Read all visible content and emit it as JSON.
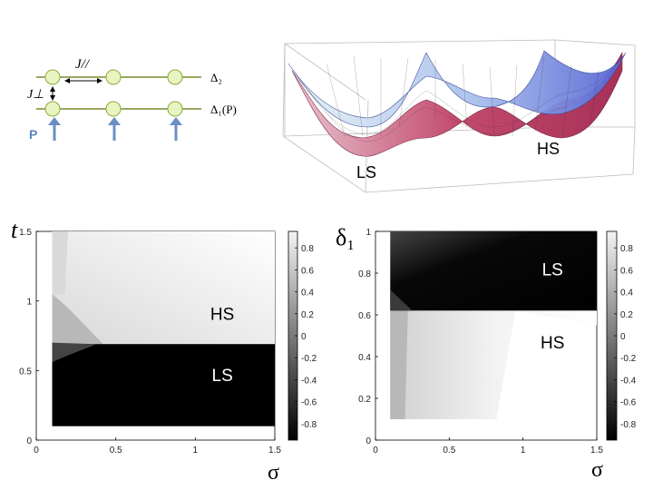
{
  "schematic": {
    "upper_level_label": "Δ₂",
    "lower_level_label": "Δ₁(P)",
    "inplane_coupling_label": "J//",
    "perp_coupling_label": "J⊥",
    "pump_label": "P",
    "colors": {
      "line": "#7a8a2e",
      "site_fill": "#e8f5c0",
      "site_stroke": "#8faa3a",
      "arrow": "#6a8fc4",
      "pump_text": "#5d86c0"
    }
  },
  "surface": {
    "label_low_spin": "LS",
    "label_high_spin": "HS",
    "colors": {
      "top": "#8ea9e6",
      "top_light": "#e4f0f6",
      "bottom": "#c34a6e",
      "grid": "#555555",
      "box": "#bbbbbb"
    }
  },
  "chart_data": [
    {
      "type": "heatmap",
      "panel": "left",
      "ylabel": "t",
      "xlabel": "σ",
      "xlim": [
        0,
        1.5
      ],
      "ylim": [
        0,
        1.5
      ],
      "x_ticks": [
        "0",
        "0.5",
        "1",
        "1.5"
      ],
      "y_ticks": [
        "0",
        "0.5",
        "1",
        "1.5"
      ],
      "data_extent": {
        "x": [
          0.1,
          1.5
        ],
        "y": [
          0.1,
          1.5
        ]
      },
      "phase_boundary_t": 0.69,
      "regions": [
        {
          "label": "HS",
          "x": 1.17,
          "y": 0.91
        },
        {
          "label": "LS",
          "x": 1.17,
          "y": 0.47
        }
      ],
      "colorbar": {
        "min": -0.95,
        "max": 0.95,
        "ticks": [
          "0.8",
          "0.6",
          "0.4",
          "0.2",
          "0",
          "-0.2",
          "-0.4",
          "-0.6",
          "-0.8"
        ]
      }
    },
    {
      "type": "heatmap",
      "panel": "right",
      "ylabel": "δ₁",
      "xlabel": "σ",
      "xlim": [
        0,
        1.5
      ],
      "ylim": [
        0,
        1
      ],
      "x_ticks": [
        "0",
        "0.5",
        "1",
        "1.5"
      ],
      "y_ticks": [
        "0",
        "0.2",
        "0.4",
        "0.6",
        "0.8",
        "1"
      ],
      "data_extent": {
        "x": [
          0.1,
          1.5
        ],
        "y": [
          0.1,
          1.0
        ]
      },
      "phase_boundary_delta": 0.62,
      "regions": [
        {
          "label": "LS",
          "x": 1.2,
          "y": 0.82
        },
        {
          "label": "HS",
          "x": 1.2,
          "y": 0.47
        }
      ],
      "colorbar": {
        "min": -0.95,
        "max": 0.95,
        "ticks": [
          "0.8",
          "0.6",
          "0.4",
          "0.2",
          "0",
          "-0.2",
          "-0.4",
          "-0.6",
          "-0.8"
        ]
      }
    }
  ]
}
